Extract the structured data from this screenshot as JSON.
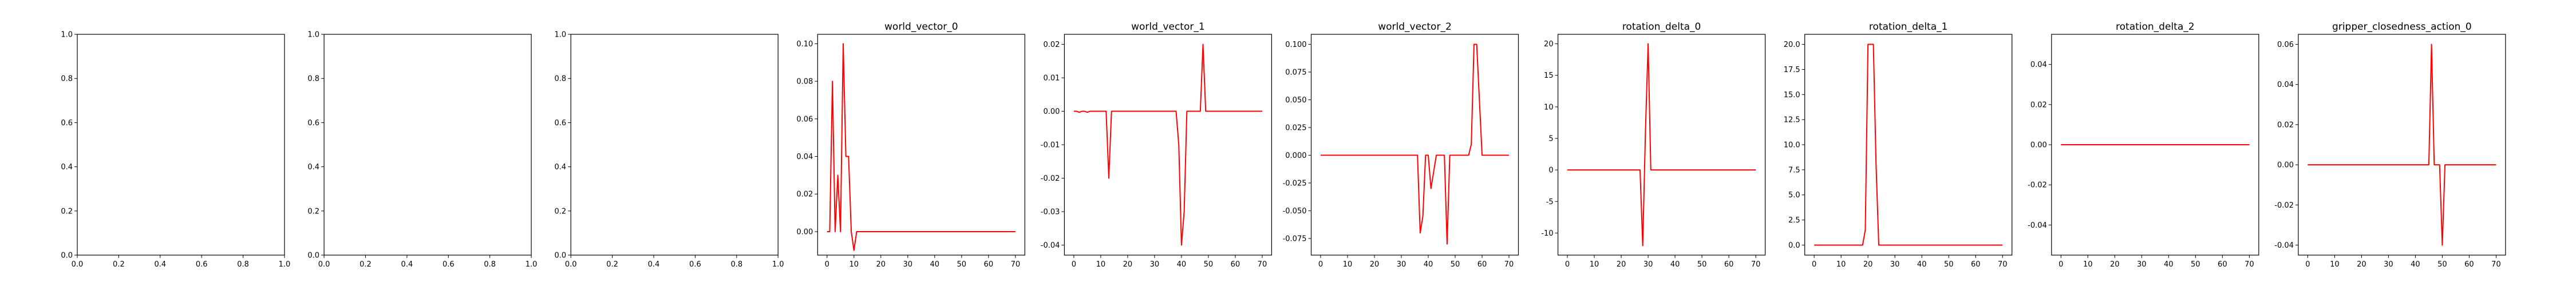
{
  "figure": {
    "background": "#ffffff",
    "line_color": "#ff0000",
    "axis_color": "#000000"
  },
  "chart_data": [
    {
      "type": "line",
      "title": "",
      "empty": true,
      "xlim": [
        0,
        1
      ],
      "ylim": [
        0,
        1
      ],
      "xticks": [
        "0.0",
        "0.2",
        "0.4",
        "0.6",
        "0.8",
        "1.0"
      ],
      "yticks": [
        "0.0",
        "0.2",
        "0.4",
        "0.6",
        "0.8",
        "1.0"
      ],
      "series": []
    },
    {
      "type": "line",
      "title": "",
      "empty": true,
      "xlim": [
        0,
        1
      ],
      "ylim": [
        0,
        1
      ],
      "xticks": [
        "0.0",
        "0.2",
        "0.4",
        "0.6",
        "0.8",
        "1.0"
      ],
      "yticks": [
        "0.0",
        "0.2",
        "0.4",
        "0.6",
        "0.8",
        "1.0"
      ],
      "series": []
    },
    {
      "type": "line",
      "title": "",
      "empty": true,
      "xlim": [
        0,
        1
      ],
      "ylim": [
        0,
        1
      ],
      "xticks": [
        "0.0",
        "0.2",
        "0.4",
        "0.6",
        "0.8",
        "1.0"
      ],
      "yticks": [
        "0.0",
        "0.2",
        "0.4",
        "0.6",
        "0.8",
        "1.0"
      ],
      "series": []
    },
    {
      "type": "line",
      "title": "world_vector_0",
      "xlim": [
        -3.5,
        73.5
      ],
      "ylim": [
        -0.0125,
        0.105
      ],
      "xticks": [
        "0",
        "10",
        "20",
        "30",
        "40",
        "50",
        "60",
        "70"
      ],
      "yticks": [
        "0.00",
        "0.02",
        "0.04",
        "0.06",
        "0.08",
        "0.10"
      ],
      "series": [
        {
          "color": "#ff0000",
          "x": [
            0,
            1,
            2,
            3,
            4,
            5,
            6,
            7,
            8,
            9,
            10,
            11,
            12,
            13,
            14,
            15,
            16,
            17,
            18,
            19,
            20,
            21,
            22,
            23,
            24,
            25,
            26,
            27,
            28,
            29,
            30,
            31,
            32,
            33,
            34,
            35,
            36,
            37,
            38,
            39,
            40,
            41,
            42,
            43,
            44,
            45,
            46,
            47,
            48,
            49,
            50,
            51,
            52,
            53,
            54,
            55,
            56,
            57,
            58,
            59,
            60,
            61,
            62,
            63,
            64,
            65,
            66,
            67,
            68,
            69,
            70
          ],
          "y": [
            0,
            0,
            0.08,
            0,
            0.03,
            0,
            0.1,
            0.04,
            0.04,
            0,
            -0.01,
            0,
            0,
            0,
            0,
            0,
            0,
            0,
            0,
            0,
            0,
            0,
            0,
            0,
            0,
            0,
            0,
            0,
            0,
            0,
            0,
            0,
            0,
            0,
            0,
            0,
            0,
            0,
            0,
            0,
            0,
            0,
            0,
            0,
            0,
            0,
            0,
            0,
            0,
            0,
            0,
            0,
            0,
            0,
            0,
            0,
            0,
            0,
            0,
            0,
            0,
            0,
            0,
            0,
            0,
            0,
            0,
            0,
            0,
            0,
            0
          ]
        }
      ]
    },
    {
      "type": "line",
      "title": "world_vector_1",
      "xlim": [
        -3.5,
        73.5
      ],
      "ylim": [
        -0.043,
        0.023
      ],
      "xticks": [
        "0",
        "10",
        "20",
        "30",
        "40",
        "50",
        "60",
        "70"
      ],
      "yticks": [
        "-0.04",
        "-0.03",
        "-0.02",
        "-0.01",
        "0.00",
        "0.01",
        "0.02"
      ],
      "series": [
        {
          "color": "#ff0000",
          "x": [
            0,
            1,
            2,
            3,
            4,
            5,
            6,
            7,
            8,
            9,
            10,
            11,
            12,
            13,
            14,
            15,
            16,
            17,
            18,
            19,
            20,
            21,
            22,
            23,
            24,
            25,
            26,
            27,
            28,
            29,
            30,
            31,
            32,
            33,
            34,
            35,
            36,
            37,
            38,
            39,
            40,
            41,
            42,
            43,
            44,
            45,
            46,
            47,
            48,
            49,
            50,
            51,
            52,
            53,
            54,
            55,
            56,
            57,
            58,
            59,
            60,
            61,
            62,
            63,
            64,
            65,
            66,
            67,
            68,
            69,
            70
          ],
          "y": [
            0,
            0,
            -0.0003,
            0,
            0,
            -0.0003,
            0,
            0,
            0,
            0,
            0,
            0,
            0,
            -0.02,
            0,
            0,
            0,
            0,
            0,
            0,
            0,
            0,
            0,
            0,
            0,
            0,
            0,
            0,
            0,
            0,
            0,
            0,
            0,
            0,
            0,
            0,
            0,
            0,
            0,
            -0.01,
            -0.04,
            -0.03,
            0,
            0,
            0,
            0,
            0,
            0,
            0.02,
            0,
            0,
            0,
            0,
            0,
            0,
            0,
            0,
            0,
            0,
            0,
            0,
            0,
            0,
            0,
            0,
            0,
            0,
            0,
            0,
            0,
            0
          ]
        }
      ]
    },
    {
      "type": "line",
      "title": "world_vector_2",
      "xlim": [
        -3.5,
        73.5
      ],
      "ylim": [
        -0.09,
        0.109
      ],
      "xticks": [
        "0",
        "10",
        "20",
        "30",
        "40",
        "50",
        "60",
        "70"
      ],
      "yticks": [
        "-0.075",
        "-0.050",
        "-0.025",
        "0.000",
        "0.025",
        "0.050",
        "0.075",
        "0.100"
      ],
      "series": [
        {
          "color": "#ff0000",
          "x": [
            0,
            1,
            2,
            3,
            4,
            5,
            6,
            7,
            8,
            9,
            10,
            11,
            12,
            13,
            14,
            15,
            16,
            17,
            18,
            19,
            20,
            21,
            22,
            23,
            24,
            25,
            26,
            27,
            28,
            29,
            30,
            31,
            32,
            33,
            34,
            35,
            36,
            37,
            38,
            39,
            40,
            41,
            42,
            43,
            44,
            45,
            46,
            47,
            48,
            49,
            50,
            51,
            52,
            53,
            54,
            55,
            56,
            57,
            58,
            59,
            60,
            61,
            62,
            63,
            64,
            65,
            66,
            67,
            68,
            69,
            70
          ],
          "y": [
            0,
            0,
            0,
            0,
            0,
            0,
            0,
            0,
            0,
            0,
            0,
            0,
            0,
            0,
            0,
            0,
            0,
            0,
            0,
            0,
            0,
            0,
            0,
            0,
            0,
            0,
            0,
            0,
            0,
            0,
            0,
            0,
            0,
            0,
            0,
            0,
            0,
            -0.07,
            -0.055,
            0,
            0,
            -0.03,
            -0.015,
            0,
            0,
            0,
            0,
            -0.08,
            0,
            0,
            0,
            0,
            0,
            0,
            0,
            0,
            0.01,
            0.1,
            0.1,
            0.05,
            0,
            0,
            0,
            0,
            0,
            0,
            0,
            0,
            0,
            0,
            0
          ]
        }
      ]
    },
    {
      "type": "line",
      "title": "rotation_delta_0",
      "xlim": [
        -3.5,
        73.5
      ],
      "ylim": [
        -13.5,
        21.5
      ],
      "xticks": [
        "0",
        "10",
        "20",
        "30",
        "40",
        "50",
        "60",
        "70"
      ],
      "yticks": [
        "-10",
        "-5",
        "0",
        "5",
        "10",
        "15",
        "20"
      ],
      "series": [
        {
          "color": "#ff0000",
          "x": [
            0,
            1,
            2,
            3,
            4,
            5,
            6,
            7,
            8,
            9,
            10,
            11,
            12,
            13,
            14,
            15,
            16,
            17,
            18,
            19,
            20,
            21,
            22,
            23,
            24,
            25,
            26,
            27,
            28,
            29,
            30,
            31,
            32,
            33,
            34,
            35,
            36,
            37,
            38,
            39,
            40,
            41,
            42,
            43,
            44,
            45,
            46,
            47,
            48,
            49,
            50,
            51,
            52,
            53,
            54,
            55,
            56,
            57,
            58,
            59,
            60,
            61,
            62,
            63,
            64,
            65,
            66,
            67,
            68,
            69,
            70
          ],
          "y": [
            0,
            0,
            0,
            0,
            0,
            0,
            0,
            0,
            0,
            0,
            0,
            0,
            0,
            0,
            0,
            0,
            0,
            0,
            0,
            0,
            0,
            0,
            0,
            0,
            0,
            0,
            0,
            0,
            -12,
            6,
            20,
            0,
            0,
            0,
            0,
            0,
            0,
            0,
            0,
            0,
            0,
            0,
            0,
            0,
            0,
            0,
            0,
            0,
            0,
            0,
            0,
            0,
            0,
            0,
            0,
            0,
            0,
            0,
            0,
            0,
            0,
            0,
            0,
            0,
            0,
            0,
            0,
            0,
            0,
            0,
            0
          ]
        }
      ]
    },
    {
      "type": "line",
      "title": "rotation_delta_1",
      "xlim": [
        -3.5,
        73.5
      ],
      "ylim": [
        -1,
        21
      ],
      "xticks": [
        "0",
        "10",
        "20",
        "30",
        "40",
        "50",
        "60",
        "70"
      ],
      "yticks": [
        "0.0",
        "2.5",
        "5.0",
        "7.5",
        "10.0",
        "12.5",
        "15.0",
        "17.5",
        "20.0"
      ],
      "series": [
        {
          "color": "#ff0000",
          "x": [
            0,
            1,
            2,
            3,
            4,
            5,
            6,
            7,
            8,
            9,
            10,
            11,
            12,
            13,
            14,
            15,
            16,
            17,
            18,
            19,
            20,
            21,
            22,
            23,
            24,
            25,
            26,
            27,
            28,
            29,
            30,
            31,
            32,
            33,
            34,
            35,
            36,
            37,
            38,
            39,
            40,
            41,
            42,
            43,
            44,
            45,
            46,
            47,
            48,
            49,
            50,
            51,
            52,
            53,
            54,
            55,
            56,
            57,
            58,
            59,
            60,
            61,
            62,
            63,
            64,
            65,
            66,
            67,
            68,
            69,
            70
          ],
          "y": [
            0,
            0,
            0,
            0,
            0,
            0,
            0,
            0,
            0,
            0,
            0,
            0,
            0,
            0,
            0,
            0,
            0,
            0,
            0,
            1.5,
            20,
            20,
            20,
            8,
            0,
            0,
            0,
            0,
            0,
            0,
            0,
            0,
            0,
            0,
            0,
            0,
            0,
            0,
            0,
            0,
            0,
            0,
            0,
            0,
            0,
            0,
            0,
            0,
            0,
            0,
            0,
            0,
            0,
            0,
            0,
            0,
            0,
            0,
            0,
            0,
            0,
            0,
            0,
            0,
            0,
            0,
            0,
            0,
            0,
            0,
            0
          ]
        }
      ]
    },
    {
      "type": "line",
      "title": "rotation_delta_2",
      "xlim": [
        -3.5,
        73.5
      ],
      "ylim": [
        -0.055,
        0.055
      ],
      "xticks": [
        "0",
        "10",
        "20",
        "30",
        "40",
        "50",
        "60",
        "70"
      ],
      "yticks": [
        "-0.04",
        "-0.02",
        "0.00",
        "0.02",
        "0.04"
      ],
      "series": [
        {
          "color": "#ff0000",
          "x": [
            0,
            70
          ],
          "y": [
            0,
            0
          ]
        }
      ]
    },
    {
      "type": "line",
      "title": "gripper_closedness_action_0",
      "xlim": [
        -3.5,
        73.5
      ],
      "ylim": [
        -0.045,
        0.065
      ],
      "xticks": [
        "0",
        "10",
        "20",
        "30",
        "40",
        "50",
        "60",
        "70"
      ],
      "yticks": [
        "-0.04",
        "-0.02",
        "0.00",
        "0.02",
        "0.04",
        "0.06"
      ],
      "series": [
        {
          "color": "#ff0000",
          "x": [
            0,
            1,
            2,
            3,
            4,
            5,
            6,
            7,
            8,
            9,
            10,
            11,
            12,
            13,
            14,
            15,
            16,
            17,
            18,
            19,
            20,
            21,
            22,
            23,
            24,
            25,
            26,
            27,
            28,
            29,
            30,
            31,
            32,
            33,
            34,
            35,
            36,
            37,
            38,
            39,
            40,
            41,
            42,
            43,
            44,
            45,
            46,
            47,
            48,
            49,
            50,
            51,
            52,
            53,
            54,
            55,
            56,
            57,
            58,
            59,
            60,
            61,
            62,
            63,
            64,
            65,
            66,
            67,
            68,
            69,
            70
          ],
          "y": [
            0,
            0,
            0,
            0,
            0,
            0,
            0,
            0,
            0,
            0,
            0,
            0,
            0,
            0,
            0,
            0,
            0,
            0,
            0,
            0,
            0,
            0,
            0,
            0,
            0,
            0,
            0,
            0,
            0,
            0,
            0,
            0,
            0,
            0,
            0,
            0,
            0,
            0,
            0,
            0,
            0,
            0,
            0,
            0,
            0,
            0,
            0.06,
            0,
            0,
            0,
            -0.04,
            0,
            0,
            0,
            0,
            0,
            0,
            0,
            0,
            0,
            0,
            0,
            0,
            0,
            0,
            0,
            0,
            0,
            0,
            0,
            0
          ]
        }
      ]
    }
  ]
}
